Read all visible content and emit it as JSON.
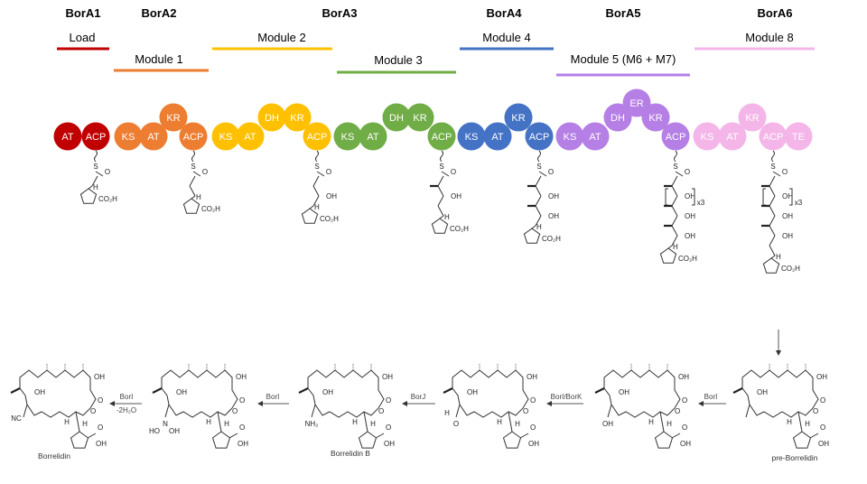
{
  "proteins": [
    {
      "name": "BorA1",
      "color": "#c00000",
      "modules": [
        {
          "label": "Load",
          "domains": [
            {
              "label": "AT",
              "row": 0
            },
            {
              "label": "ACP",
              "row": 0
            }
          ]
        }
      ]
    },
    {
      "name": "BorA2",
      "color": "#ed7d31",
      "modules": [
        {
          "label": "Module 1",
          "domains": [
            {
              "label": "KS",
              "row": 0
            },
            {
              "label": "AT",
              "row": 0
            },
            {
              "label": "KR",
              "row": 1
            },
            {
              "label": "ACP",
              "row": 0
            }
          ]
        }
      ]
    },
    {
      "name": "BorA3",
      "color": "#ffc000",
      "modules": [
        {
          "label": "Module 2",
          "color": "#ffc000",
          "domains": [
            {
              "label": "KS",
              "row": 0
            },
            {
              "label": "AT",
              "row": 0
            },
            {
              "label": "DH",
              "row": 1
            },
            {
              "label": "KR",
              "row": 1
            },
            {
              "label": "ACP",
              "row": 0
            }
          ]
        },
        {
          "label": "Module 3",
          "color": "#70ad47",
          "domains": [
            {
              "label": "KS",
              "row": 0
            },
            {
              "label": "AT",
              "row": 0
            },
            {
              "label": "DH",
              "row": 1
            },
            {
              "label": "KR",
              "row": 1
            },
            {
              "label": "ACP",
              "row": 0
            }
          ]
        }
      ]
    },
    {
      "name": "BorA4",
      "color": "#4472c4",
      "modules": [
        {
          "label": "Module 4",
          "domains": [
            {
              "label": "KS",
              "row": 0
            },
            {
              "label": "AT",
              "row": 0
            },
            {
              "label": "KR",
              "row": 1
            },
            {
              "label": "ACP",
              "row": 0
            }
          ]
        }
      ]
    },
    {
      "name": "BorA5",
      "color": "#b57fe6",
      "modules": [
        {
          "label": "Module 5 (M6 + M7)",
          "domains": [
            {
              "label": "KS",
              "row": 0
            },
            {
              "label": "AT",
              "row": 0
            },
            {
              "label": "DH",
              "row": 1
            },
            {
              "label": "ER",
              "row": 2
            },
            {
              "label": "KR",
              "row": 1
            },
            {
              "label": "ACP",
              "row": 0
            }
          ]
        }
      ]
    },
    {
      "name": "BorA6",
      "color": "#f4b6e8",
      "modules": [
        {
          "label": "Module 8",
          "domains": [
            {
              "label": "KS",
              "row": 0
            },
            {
              "label": "AT",
              "row": 0
            },
            {
              "label": "KR",
              "row": 1
            },
            {
              "label": "ACP",
              "row": 0
            },
            {
              "label": "TE",
              "row": 0
            }
          ]
        }
      ]
    }
  ],
  "atom_labels": {
    "s": "S",
    "oh": "OH",
    "co2h": "CO₂H",
    "h": "H",
    "o": "O",
    "x3": "x3",
    "nc": "NC",
    "nh2": "NH₂",
    "n": "N",
    "ho": "HO"
  },
  "pathway": {
    "steps": [
      {
        "enzyme": "BorI",
        "sub": ""
      },
      {
        "enzyme": "BorI/BorK",
        "sub": ""
      },
      {
        "enzyme": "BorJ",
        "sub": ""
      },
      {
        "enzyme": "BorI",
        "sub": ""
      },
      {
        "enzyme": "BorI",
        "sub": "-2H₂O"
      }
    ],
    "compounds": [
      {
        "name": "pre-Borrelidin",
        "substituent": "CH3"
      },
      {
        "name": "",
        "substituent": "CH2OH"
      },
      {
        "name": "",
        "substituent": "CHO"
      },
      {
        "name": "Borrelidin B",
        "substituent": "CH2NH2"
      },
      {
        "name": "",
        "substituent": "CH2N(OH)2"
      },
      {
        "name": "Borrelidin",
        "substituent": "CN"
      }
    ]
  }
}
